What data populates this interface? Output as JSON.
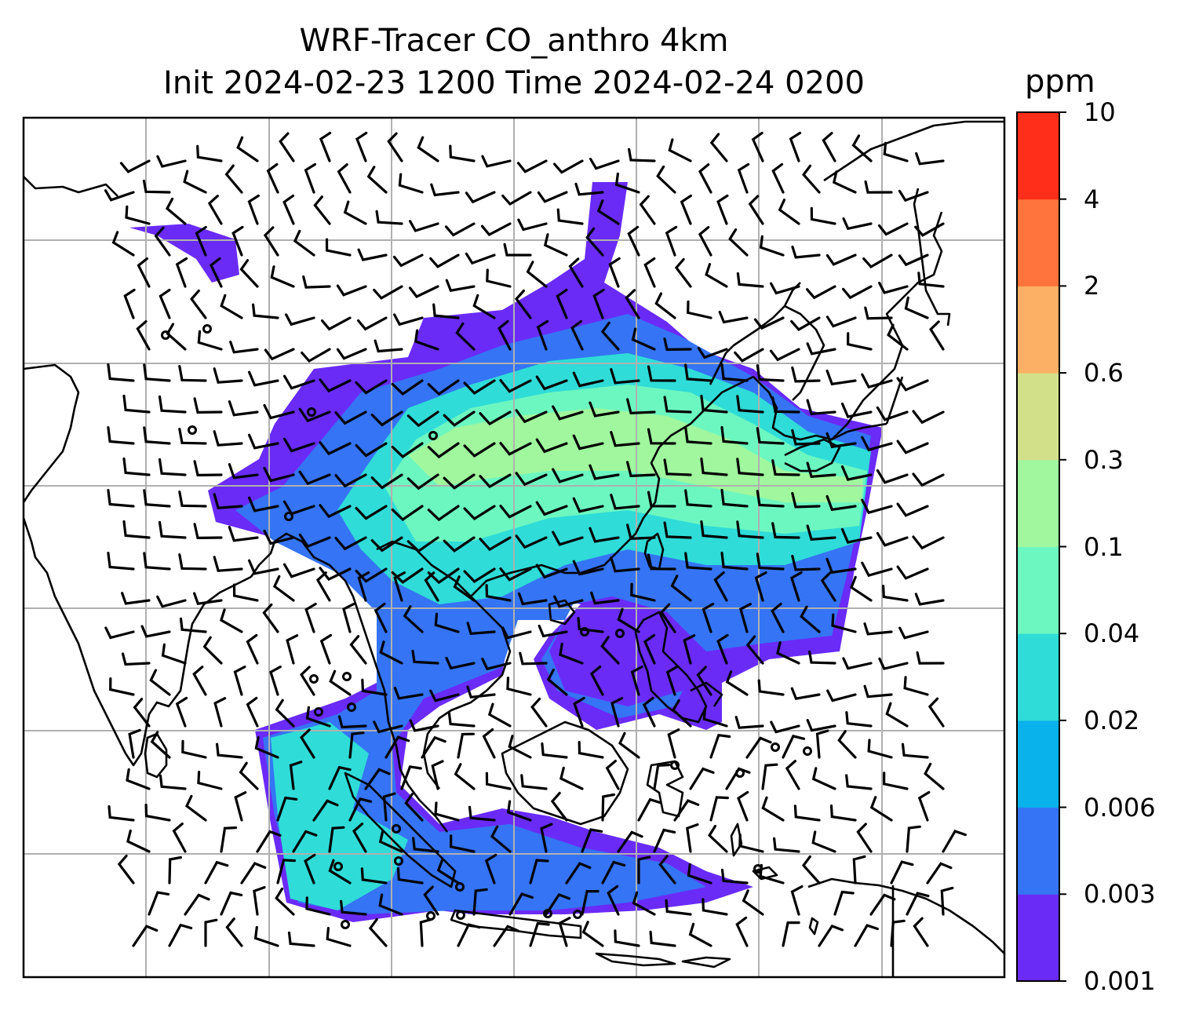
{
  "title": {
    "line1": "WRF-Tracer CO_anthro 4km",
    "line2": "Init 2024-02-23 1200 Time 2024-02-24 0200"
  },
  "colorbar": {
    "unit": "ppm",
    "levels": [
      "0.001",
      "0.003",
      "0.006",
      "0.02",
      "0.04",
      "0.1",
      "0.3",
      "0.6",
      "2",
      "4",
      "10"
    ],
    "colors": [
      "#6a2bf7",
      "#3574f4",
      "#09b2ea",
      "#2fdcd8",
      "#6cf7c0",
      "#a0f79e",
      "#d2e08a",
      "#fcb065",
      "#ff743c",
      "#ff2e1a"
    ]
  },
  "map": {
    "gridlines": true,
    "grid_color": "#b0b0b0",
    "plume_colors": {
      "edge": "#6a2bf7",
      "low": "#3574f4",
      "mid": "#2fdcd8",
      "high": "#6cf7c0",
      "peak": "#a0f79e"
    }
  }
}
